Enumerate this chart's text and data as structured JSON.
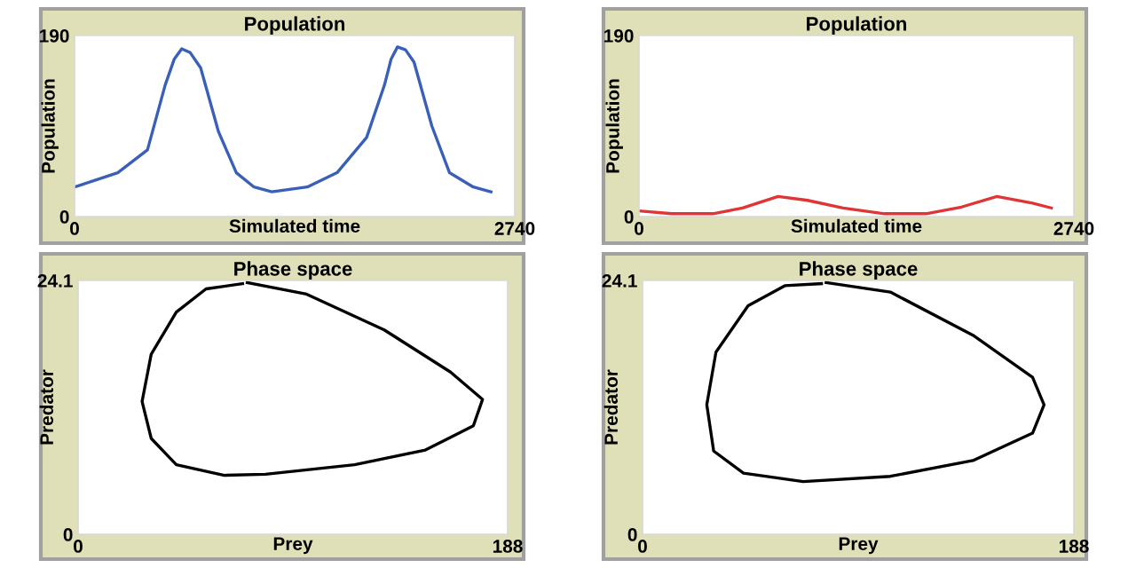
{
  "chart_data": [
    {
      "type": "line",
      "title": "Population",
      "xlabel": "Simulated time",
      "ylabel": "Population",
      "xlim": [
        0,
        2740
      ],
      "ylim": [
        0,
        190
      ],
      "xticks": [
        0,
        2740
      ],
      "yticks": [
        0,
        190
      ],
      "series": [
        {
          "color": "#3a5fb8",
          "x": [
            0,
            269,
            454,
            564,
            620,
            667,
            720,
            785,
            896,
            1007,
            1117,
            1228,
            1449,
            1634,
            1818,
            1929,
            1970,
            2010,
            2060,
            2113,
            2224,
            2334,
            2482,
            2592
          ],
          "values": [
            31,
            46,
            70,
            138,
            165,
            176,
            172,
            156,
            89,
            46,
            31,
            26,
            31,
            46,
            83,
            138,
            165,
            178,
            175,
            162,
            95,
            46,
            31,
            26
          ]
        }
      ]
    },
    {
      "type": "line",
      "title": "Population",
      "xlabel": "Simulated time",
      "ylabel": "Population",
      "xlim": [
        0,
        2740
      ],
      "ylim": [
        0,
        190
      ],
      "xticks": [
        0,
        2740
      ],
      "yticks": [
        0,
        190
      ],
      "series": [
        {
          "color": "#e03535",
          "x": [
            0,
            205,
            466,
            652,
            876,
            1062,
            1286,
            1547,
            1808,
            2032,
            2255,
            2479,
            2598
          ],
          "values": [
            6,
            3,
            3,
            9,
            21,
            17,
            9,
            3,
            3,
            10,
            21,
            14,
            9
          ]
        }
      ]
    },
    {
      "type": "line",
      "title": "Phase space",
      "xlabel": "Prey",
      "ylabel": "Predator",
      "xlim": [
        0,
        188
      ],
      "ylim": [
        0,
        24.1
      ],
      "xticks": [
        0,
        188
      ],
      "yticks": [
        0,
        24.1
      ],
      "series": [
        {
          "color": "#000000",
          "x": [
            74,
            100,
            134,
            163,
            177,
            173,
            152,
            121,
            82,
            64,
            43,
            32,
            28,
            32,
            43,
            56,
            72
          ],
          "values": [
            23.9,
            22.8,
            19.4,
            15.4,
            12.8,
            10.3,
            8.0,
            6.6,
            5.7,
            5.6,
            6.6,
            9.1,
            12.6,
            17.1,
            21.1,
            23.3,
            23.8
          ]
        }
      ]
    },
    {
      "type": "line",
      "title": "Phase space",
      "xlabel": "Prey",
      "ylabel": "Predator",
      "xlim": [
        0,
        188
      ],
      "ylim": [
        0,
        24.1
      ],
      "xticks": [
        0,
        188
      ],
      "yticks": [
        0,
        24.1
      ],
      "series": [
        {
          "color": "#000000",
          "x": [
            80,
            108,
            144,
            170,
            175,
            170,
            144,
            108,
            70,
            44,
            31,
            28,
            32,
            46,
            62,
            78
          ],
          "values": [
            23.9,
            23.0,
            18.9,
            14.9,
            12.3,
            9.6,
            7.0,
            5.5,
            5.0,
            5.8,
            7.9,
            12.3,
            17.3,
            21.7,
            23.6,
            23.8
          ]
        }
      ]
    }
  ]
}
